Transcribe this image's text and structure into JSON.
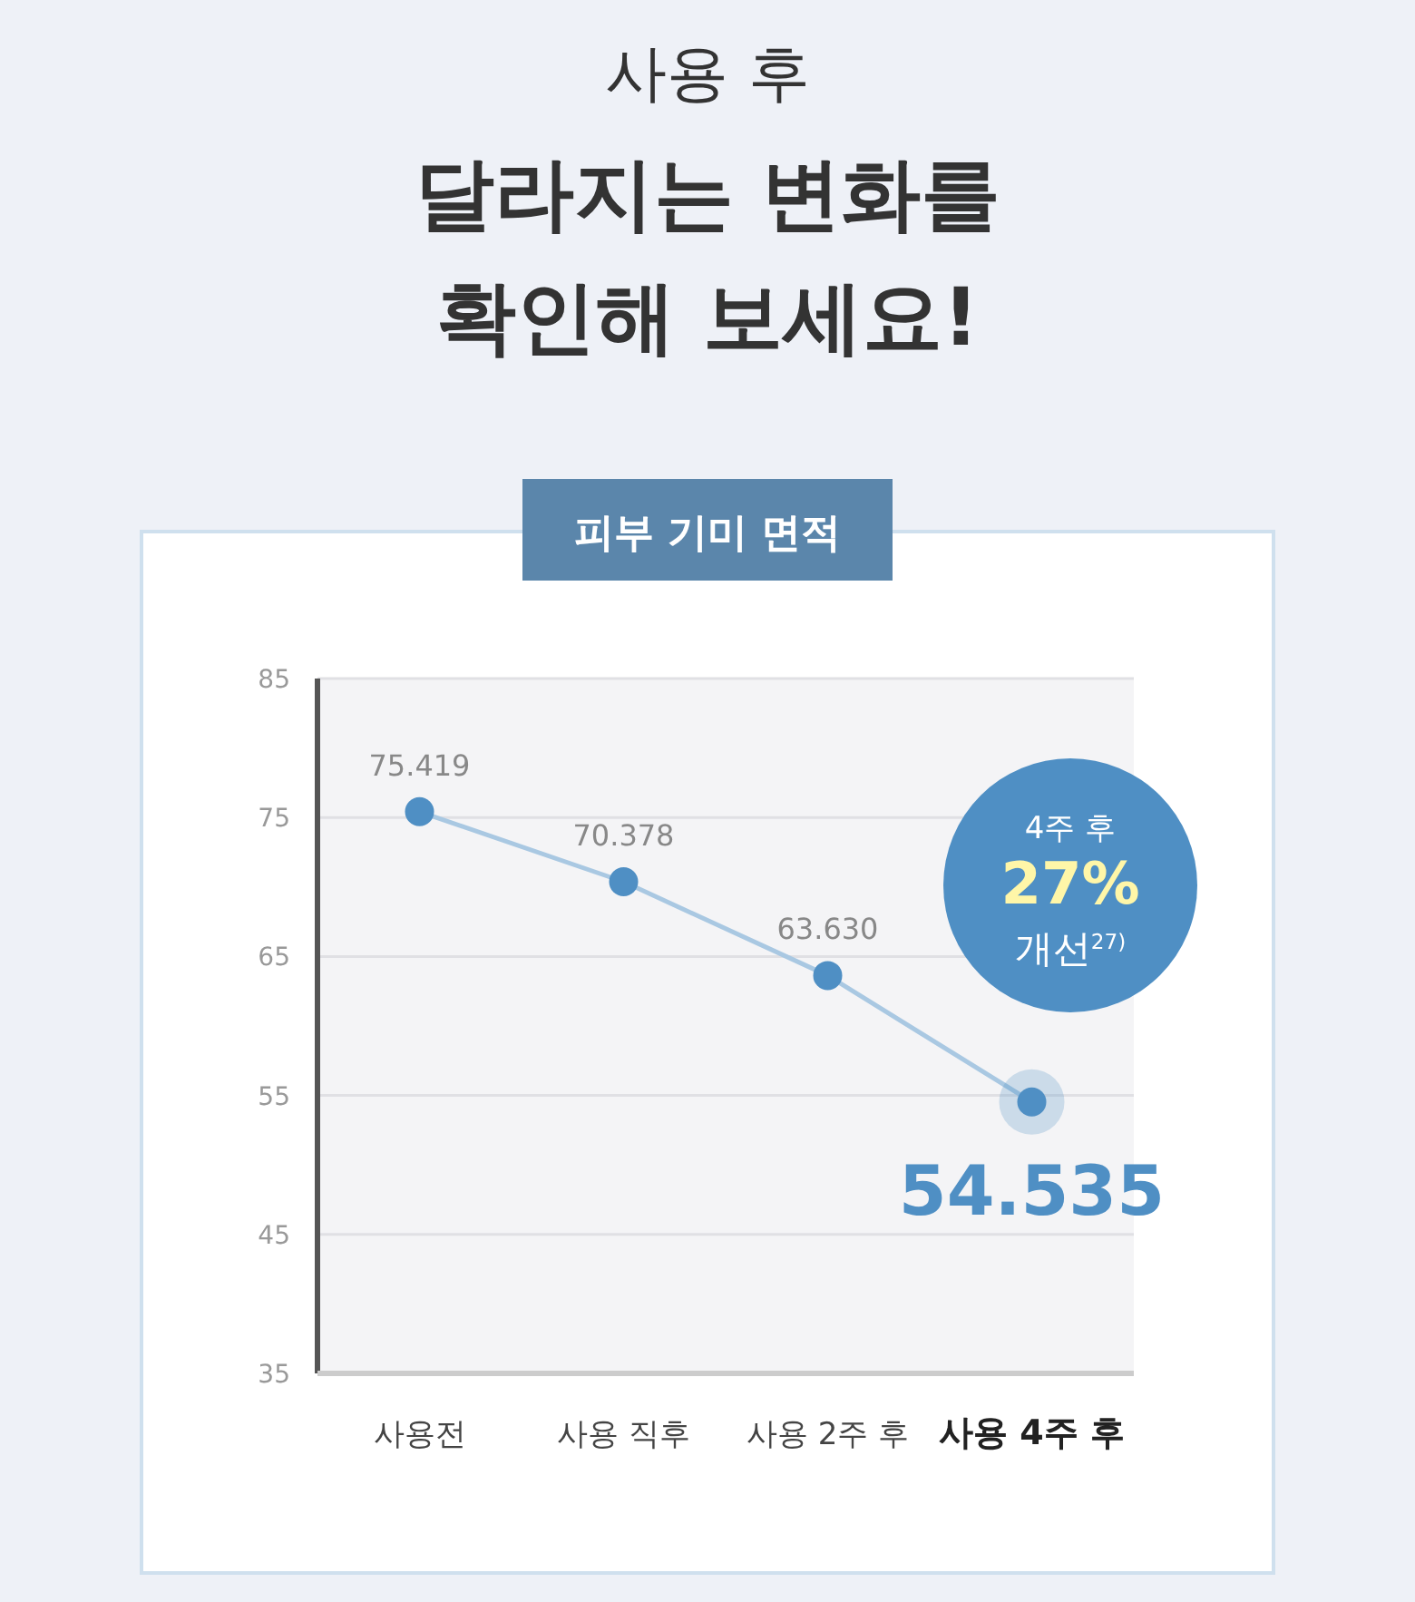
{
  "chart_data": {
    "type": "line",
    "title": "사용 후",
    "subtitle": "달라지는 변화를 확인해 보세요!",
    "annotations": [
      "피부 기미 면적",
      "4주 후",
      "27%",
      "개선$^{27)}$"
    ],
    "categories": [
      "사용전",
      "사용 직후",
      "사용 2주 후",
      "사용 4주 후"
    ],
    "series": [
      {
        "color": "#a9c8e2",
        "values": [
          75.419,
          70.378,
          63.63,
          54.535
        ],
        "value_labels": [
          "75.419",
          "70.378",
          "63.630",
          "54.535"
        ]
      }
    ],
    "ylim": [
      35,
      85
    ],
    "yticks": [
      35,
      45,
      55,
      65,
      75,
      85
    ],
    "grid": "y",
    "marker": "circle",
    "line_style": "solid"
  }
}
